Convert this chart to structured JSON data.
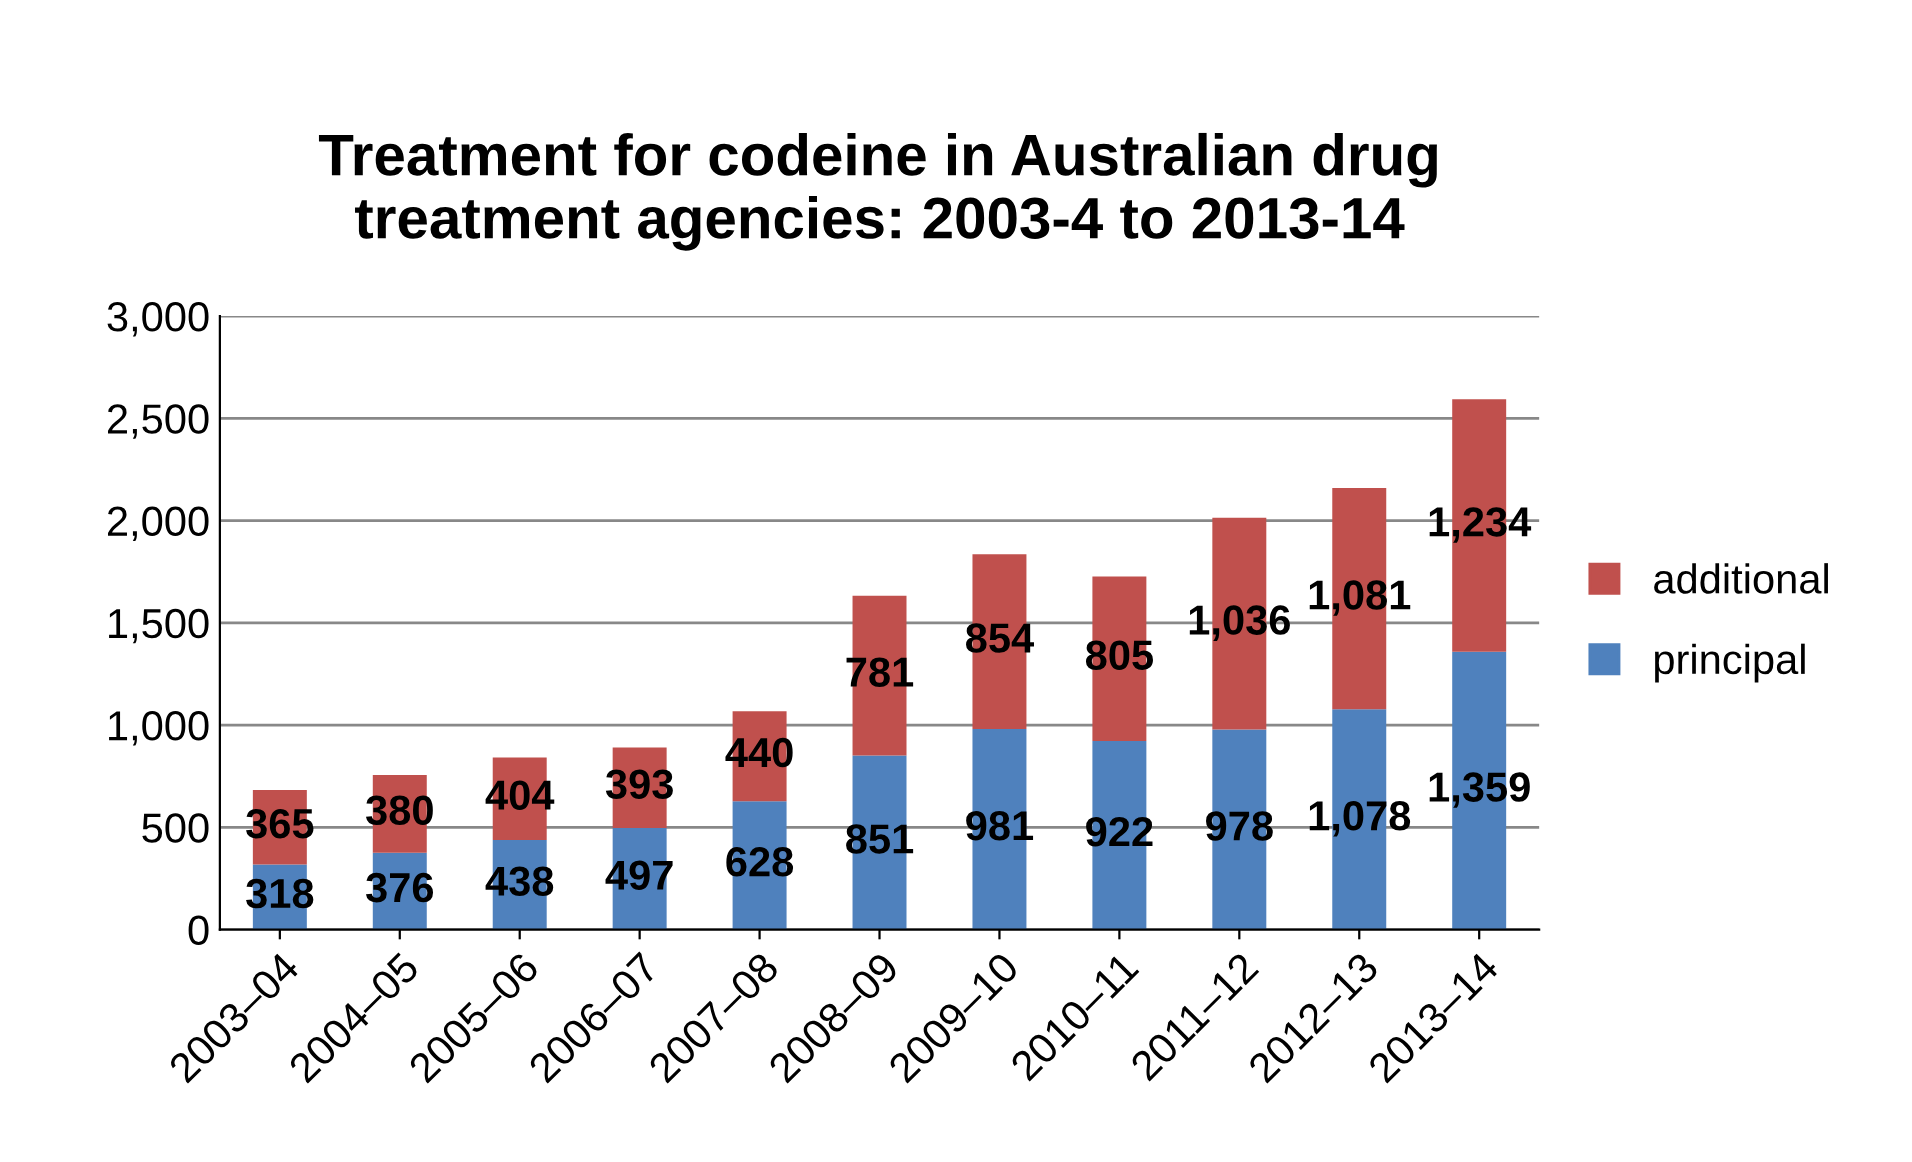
{
  "chart_data": {
    "type": "bar",
    "title": "Treatment for codeine in Australian drug\ntreatment agencies: 2003-4 to 2013-14",
    "categories": [
      "2003–04",
      "2004–05",
      "2005–06",
      "2006–07",
      "2007–08",
      "2008–09",
      "2009–10",
      "2010–11",
      "2011–12",
      "2012–13",
      "2013–14"
    ],
    "stacked": true,
    "series": [
      {
        "name": "principal",
        "color": "#4f81bd",
        "values": [
          318,
          376,
          438,
          497,
          628,
          851,
          981,
          922,
          978,
          1078,
          1359
        ],
        "value_labels": [
          "318",
          "376",
          "438",
          "497",
          "628",
          "851",
          "981",
          "922",
          "978",
          "1,078",
          "1,359"
        ]
      },
      {
        "name": "additional",
        "color": "#c0504d",
        "values": [
          365,
          380,
          404,
          393,
          440,
          781,
          854,
          805,
          1036,
          1081,
          1234
        ],
        "value_labels": [
          "365",
          "380",
          "404",
          "393",
          "440",
          "781",
          "854",
          "805",
          "1,036",
          "1,081",
          "1,234"
        ]
      }
    ],
    "ylim": [
      0,
      3000
    ],
    "yticks": [
      0,
      {
        "value": 500,
        "label": "500"
      },
      {
        "value": 1000,
        "label": "1,000"
      },
      {
        "value": 1500,
        "label": "1,500"
      },
      {
        "value": 2000,
        "label": "2,000"
      },
      {
        "value": 2500,
        "label": "2,500"
      },
      {
        "value": 3000,
        "label": "3,000"
      }
    ],
    "grid": "y",
    "legend": "right"
  }
}
